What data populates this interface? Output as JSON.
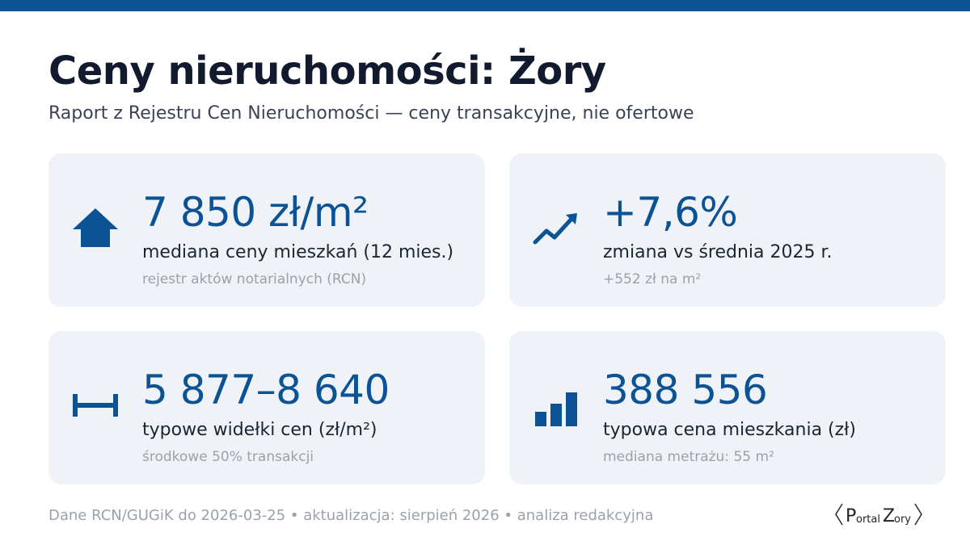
{
  "header": {
    "title": "Ceny nieruchomości: Żory",
    "subtitle": "Raport z Rejestru Cen Nieruchomości — ceny transakcyjne, nie ofertowe"
  },
  "cards": [
    {
      "icon": "house-icon",
      "value": "7 850 zł/m²",
      "label": "mediana ceny mieszkań (12 mies.)",
      "note": "rejestr aktów notarialnych (RCN)"
    },
    {
      "icon": "trend-up-icon",
      "value": "+7,6%",
      "label": "zmiana vs średnia 2025 r.",
      "note": "+552 zł na m²"
    },
    {
      "icon": "range-icon",
      "value": "5 877–8 640",
      "label": "typowe widełki cen (zł/m²)",
      "note": "środkowe 50% transakcji"
    },
    {
      "icon": "bar-chart-icon",
      "value": "388 556",
      "label": "typowa cena mieszkania (zł)",
      "note": "mediana metrażu: 55 m²"
    }
  ],
  "footer": {
    "text": "Dane RCN/GUGiK do 2026-03-25 • aktualizacja: sierpień 2026 • analiza redakcyjna"
  },
  "logo": {
    "text_1": "P",
    "text_2": "ortal",
    "text_3": "Z",
    "text_4": "ory"
  },
  "colors": {
    "accent": "#0b5394",
    "card_bg": "#eff3f8",
    "title": "#111a2e",
    "muted": "#9aa1ad"
  }
}
